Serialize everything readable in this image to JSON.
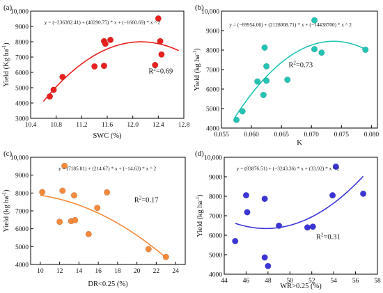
{
  "chart_data": [
    {
      "panel": "(a)",
      "type": "scatter",
      "xlabel": "SWC (%)",
      "ylabel": "Yield (Kg ha",
      "ylabel_sup": "-1",
      "xlim": [
        10.4,
        12.8
      ],
      "ylim": [
        3000,
        10000
      ],
      "xticks": [
        10.4,
        10.8,
        11.2,
        11.6,
        12.0,
        12.4,
        12.8
      ],
      "xtick_labels": [
        "10.4",
        "10.8",
        "11.2",
        "11.6",
        "12.0",
        "12.4",
        "12.8"
      ],
      "yticks": [
        3000,
        4000,
        5000,
        6000,
        7000,
        8000,
        9000,
        10000
      ],
      "ytick_labels": [
        "3000",
        "4000",
        "5000",
        "6000",
        "7000",
        "8000",
        "9000",
        "10,000"
      ],
      "color": "#e8201e",
      "points": [
        [
          10.7,
          4430
        ],
        [
          10.76,
          4860
        ],
        [
          10.9,
          5700
        ],
        [
          11.4,
          6390
        ],
        [
          11.55,
          6430
        ],
        [
          11.55,
          8040
        ],
        [
          11.57,
          7870
        ],
        [
          11.65,
          8120
        ],
        [
          12.35,
          6480
        ],
        [
          12.4,
          9520
        ],
        [
          12.43,
          8040
        ],
        [
          12.45,
          7170
        ]
      ],
      "fit": {
        "a": -236382.41,
        "b": 40290.75,
        "c": -1660.69,
        "x_range": [
          10.6,
          12.72
        ]
      },
      "equation": "y = (−236382.41) + (40290.75) * x + (−1660.69) * x ^ 2",
      "r2_label": "R",
      "r2_value": "=0.69"
    },
    {
      "panel": "(b)",
      "type": "scatter",
      "xlabel": "K",
      "ylabel": "Yield (kg ha",
      "ylabel_sup": "-1",
      "xlim": [
        0.055,
        0.081
      ],
      "ylim": [
        4000,
        10000
      ],
      "xticks": [
        0.055,
        0.06,
        0.065,
        0.07,
        0.075,
        0.08
      ],
      "xtick_labels": [
        "0.055",
        "0.060",
        "0.065",
        "0.070",
        "0.075",
        "0.080"
      ],
      "yticks": [
        4000,
        5000,
        6000,
        7000,
        8000,
        9000,
        10000
      ],
      "ytick_labels": [
        "4000",
        "5000",
        "6000",
        "7000",
        "8000",
        "9000",
        "10,000"
      ],
      "color": "#22c4b4",
      "points": [
        [
          0.0575,
          4420
        ],
        [
          0.0585,
          4860
        ],
        [
          0.061,
          6390
        ],
        [
          0.062,
          5700
        ],
        [
          0.0622,
          8130
        ],
        [
          0.0625,
          7170
        ],
        [
          0.0625,
          6430
        ],
        [
          0.066,
          6480
        ],
        [
          0.0705,
          9530
        ],
        [
          0.0705,
          8050
        ],
        [
          0.0717,
          7870
        ],
        [
          0.079,
          8020
        ]
      ],
      "fit": {
        "a": -69954.06,
        "b": 2128008.71,
        "c": -14438700,
        "x_range": [
          0.0572,
          0.0793
        ]
      },
      "equation": "y = (−69954.06) + (2128008.71) * x + (−14438700) * x ^ 2",
      "r2_label": "R",
      "r2_value": "=0.73"
    },
    {
      "panel": "(c)",
      "type": "scatter",
      "xlabel": "DR<0.25 (%)",
      "ylabel": "Yield (kg ha",
      "ylabel_sup": "-1",
      "xlim": [
        9,
        25
      ],
      "ylim": [
        4000,
        10000
      ],
      "xticks": [
        10,
        12,
        14,
        16,
        18,
        20,
        22,
        24
      ],
      "xtick_labels": [
        "10",
        "12",
        "14",
        "16",
        "18",
        "20",
        "22",
        "24"
      ],
      "yticks": [
        4000,
        5000,
        6000,
        7000,
        8000,
        9000,
        10000
      ],
      "ytick_labels": [
        "4000",
        "5000",
        "6000",
        "7000",
        "8000",
        "9000",
        "10,000"
      ],
      "color": "#f58a3c",
      "points": [
        [
          10.2,
          8050
        ],
        [
          12.0,
          6390
        ],
        [
          12.3,
          8130
        ],
        [
          12.5,
          9520
        ],
        [
          13.2,
          6430
        ],
        [
          13.5,
          7870
        ],
        [
          13.6,
          6480
        ],
        [
          15.0,
          5700
        ],
        [
          15.9,
          7170
        ],
        [
          16.9,
          8040
        ],
        [
          21.2,
          4860
        ],
        [
          23.0,
          4420
        ]
      ],
      "fit": {
        "a": 7185.81,
        "b": 214.67,
        "c": -14.63,
        "x_range": [
          10.0,
          23.0
        ]
      },
      "equation": "y = (7185.81) + (214.67) * x + (−14.63) * x ^ 2",
      "r2_label": "R",
      "r2_value": "=0.17"
    },
    {
      "panel": "(d)",
      "type": "scatter",
      "xlabel": "WR>0.25 (%)",
      "ylabel": "Yield (kg ha",
      "ylabel_sup": "-1",
      "xlim": [
        44,
        58
      ],
      "ylim": [
        4000,
        10000
      ],
      "xticks": [
        44,
        46,
        48,
        50,
        52,
        54,
        56,
        58
      ],
      "xtick_labels": [
        "44",
        "46",
        "48",
        "50",
        "52",
        "54",
        "56",
        "58"
      ],
      "yticks": [
        4000,
        5000,
        6000,
        7000,
        8000,
        9000,
        10000
      ],
      "ytick_labels": [
        "4000",
        "5000",
        "6000",
        "7000",
        "8000",
        "9000",
        "10,000"
      ],
      "color": "#3b35d8",
      "points": [
        [
          45.0,
          5700
        ],
        [
          46.0,
          8050
        ],
        [
          46.1,
          7180
        ],
        [
          47.7,
          7870
        ],
        [
          47.7,
          4860
        ],
        [
          48.0,
          4420
        ],
        [
          49.0,
          6490
        ],
        [
          51.6,
          6400
        ],
        [
          52.1,
          6440
        ],
        [
          53.9,
          8050
        ],
        [
          54.2,
          9520
        ],
        [
          56.7,
          8130
        ]
      ],
      "fit": {
        "a": 83876.51,
        "b": -3243.36,
        "c": 33.92,
        "x_range": [
          45.0,
          56.7
        ]
      },
      "equation": "y = (83876.51) + (−3243.36) * x + (33.92) * x ^ 2",
      "r2_label": "R",
      "r2_value": "=0.31"
    }
  ]
}
